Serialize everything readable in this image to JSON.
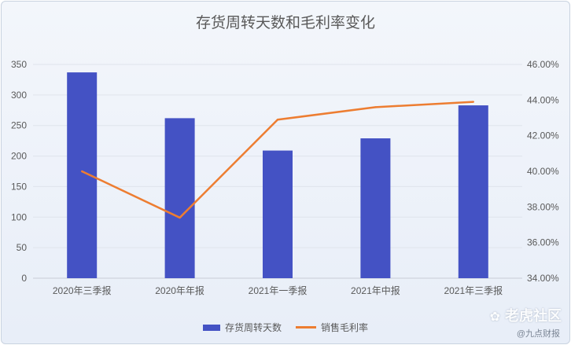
{
  "chart_data": {
    "type": "bar+line",
    "title": "存货周转天数和毛利率变化",
    "categories": [
      "2020年三季报",
      "2020年年报",
      "2021年一季报",
      "2021年中报",
      "2021年三季报"
    ],
    "series": [
      {
        "name": "存货周转天数",
        "type": "bar",
        "axis": "left",
        "color": "#4452c4",
        "values": [
          337,
          262,
          209,
          229,
          283
        ]
      },
      {
        "name": "销售毛利率",
        "type": "line",
        "axis": "right",
        "color": "#ed7d31",
        "values": [
          40.0,
          37.4,
          42.9,
          43.6,
          43.9
        ]
      }
    ],
    "y_left": {
      "min": 0,
      "max": 350,
      "ticks": [
        "0",
        "50",
        "100",
        "150",
        "200",
        "250",
        "300",
        "350"
      ]
    },
    "y_right": {
      "min": 34,
      "max": 46,
      "ticks": [
        "34.00%",
        "36.00%",
        "38.00%",
        "40.00%",
        "42.00%",
        "44.00%",
        "46.00%"
      ]
    },
    "grid": true,
    "legend": "bottom"
  },
  "watermark": {
    "brand": "老虎社区",
    "sub": "@九点财报",
    "icon": "tiger-paw-icon"
  }
}
